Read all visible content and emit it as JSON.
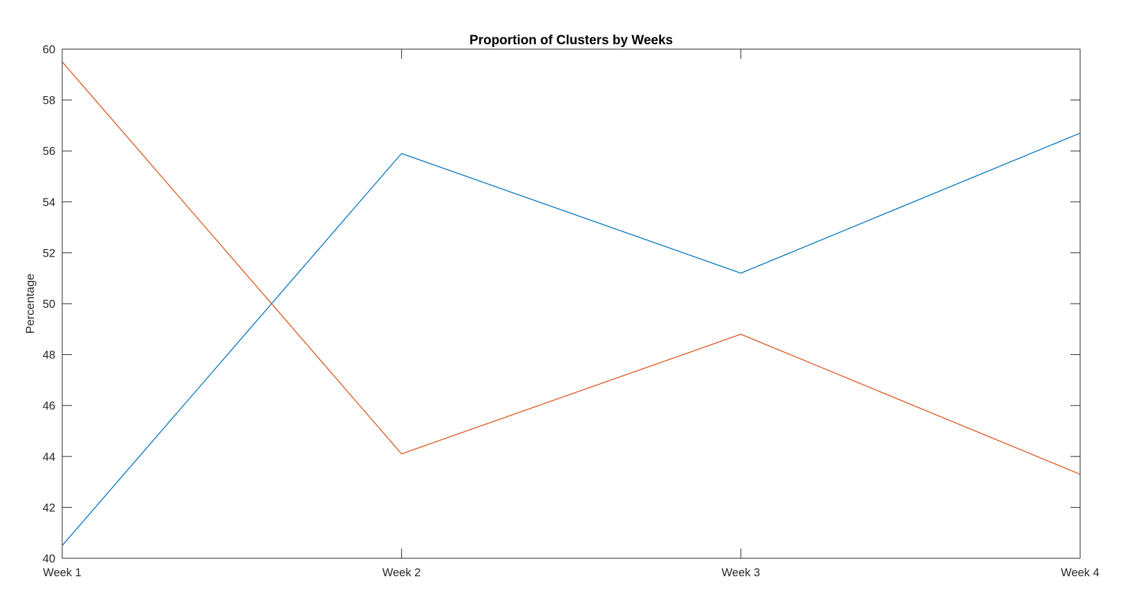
{
  "chart_data": {
    "type": "line",
    "title": "Proportion of Clusters by Weeks",
    "xlabel": "",
    "ylabel": "Percentage",
    "categories": [
      "Week 1",
      "Week 2",
      "Week 3",
      "Week 4"
    ],
    "ylim": [
      40,
      60
    ],
    "yticks": [
      40,
      42,
      44,
      46,
      48,
      50,
      52,
      54,
      56,
      58,
      60
    ],
    "grid": false,
    "series": [
      {
        "color": "#0072BD",
        "values": [
          40.5,
          55.9,
          51.2,
          56.7
        ]
      },
      {
        "color": "#D95319",
        "values": [
          59.5,
          44.1,
          48.8,
          43.3
        ]
      }
    ]
  }
}
